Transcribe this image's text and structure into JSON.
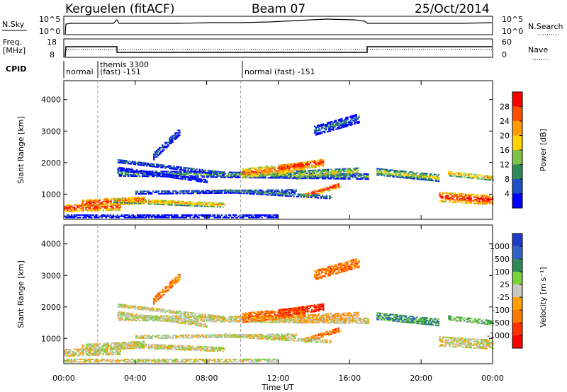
{
  "header": {
    "station": "Kerguelen (fitACF)",
    "beam": "Beam 07",
    "date": "25/Oct/2014"
  },
  "top_panels": {
    "nsky_label": "N.Sky",
    "nsky_ticks": [
      "10^5",
      "10^0"
    ],
    "nsearch_label": "N.Search",
    "nsearch_ticks": [
      "10^5",
      "10^0"
    ],
    "freq_label": "Freq.",
    "freq_unit": "[MHz]",
    "freq_ticks": [
      "18",
      "8"
    ],
    "nave_label": "Nave",
    "nave_ticks": [
      "60",
      "0"
    ],
    "cpid_label": "CPID",
    "cpid_segments": [
      {
        "line1": "normal",
        "line2": ""
      },
      {
        "line1": "themis 3300",
        "line2": "(fast) -151"
      },
      {
        "line1": "normal (fast) -151",
        "line2": ""
      }
    ]
  },
  "chart_data": [
    {
      "type": "heatmap",
      "name": "Power",
      "ylabel": "Slant Range [km]",
      "yticks": [
        1000,
        2000,
        3000,
        4000
      ],
      "ylim": [
        200,
        4600
      ],
      "xlim_hours": [
        0,
        24
      ],
      "colorbar_label": "Power [dB]",
      "colorbar_ticks": [
        "28",
        "24",
        "20",
        "16",
        "12",
        "8",
        "4"
      ],
      "colorbar_colors": [
        "#ff0000",
        "#ff5000",
        "#ff9a00",
        "#ffd200",
        "#7fc24a",
        "#2e8b57",
        "#1e50c8",
        "#0000ff"
      ]
    },
    {
      "type": "heatmap",
      "name": "Velocity",
      "ylabel": "Slant Range [km]",
      "yticks": [
        1000,
        2000,
        3000,
        4000
      ],
      "ylim": [
        200,
        4600
      ],
      "xlim_hours": [
        0,
        24
      ],
      "colorbar_label": "Velocity [m s⁻¹]",
      "colorbar_ticks": [
        "1000",
        "500",
        "100",
        "25",
        "-25",
        "-100",
        "-500",
        "-1000"
      ],
      "colorbar_colors": [
        "#1e3cc8",
        "#3264c8",
        "#2e8b57",
        "#78d23c",
        "#c8c8c0",
        "#ffa000",
        "#ff7800",
        "#ff3000",
        "#ff0000"
      ]
    }
  ],
  "x_axis": {
    "ticks": [
      "00:00",
      "04:00",
      "08:00",
      "12:00",
      "16:00",
      "20:00",
      "00:00"
    ],
    "label": "Time UT"
  }
}
